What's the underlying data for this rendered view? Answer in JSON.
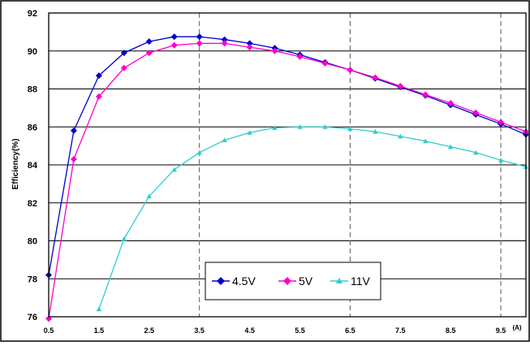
{
  "chart_data": {
    "type": "line",
    "title": "",
    "ylabel": "Efficiency(%)",
    "xunit": "(A)",
    "xlim": [
      0.5,
      10
    ],
    "ylim": [
      76,
      92
    ],
    "yticks": [
      "76",
      "78",
      "80",
      "82",
      "84",
      "86",
      "88",
      "90",
      "92"
    ],
    "xticks": [
      "0.5",
      "1.5",
      "2.5",
      "3.5",
      "4.5",
      "5.5",
      "6.5",
      "7.5",
      "8.5",
      "9.5"
    ],
    "horizontal_grid": true,
    "vertical_dashed_lines_at": [
      3.5,
      6.5,
      9.5
    ],
    "legend_position": "bottom-center",
    "series": [
      {
        "name": "4.5V",
        "color": "#0000cc",
        "marker": "diamond",
        "x": [
          0.5,
          1,
          1.5,
          2,
          2.5,
          3,
          3.5,
          4,
          4.5,
          5,
          5.5,
          6,
          6.5,
          7,
          7.5,
          8,
          8.5,
          9,
          9.5,
          10
        ],
        "values": [
          78.2,
          85.8,
          88.7,
          89.9,
          90.5,
          90.75,
          90.75,
          90.6,
          90.4,
          90.15,
          89.8,
          89.4,
          89.0,
          88.55,
          88.1,
          87.65,
          87.15,
          86.65,
          86.15,
          85.6
        ]
      },
      {
        "name": "5V",
        "color": "#ff00cc",
        "marker": "diamond",
        "x": [
          0.5,
          1,
          1.5,
          2,
          2.5,
          3,
          3.5,
          4,
          4.5,
          5,
          5.5,
          6,
          6.5,
          7,
          7.5,
          8,
          8.5,
          9,
          9.5,
          10
        ],
        "values": [
          75.9,
          84.3,
          87.6,
          89.1,
          89.9,
          90.3,
          90.4,
          90.4,
          90.2,
          90.0,
          89.7,
          89.35,
          89.0,
          88.6,
          88.15,
          87.7,
          87.25,
          86.75,
          86.25,
          85.75
        ]
      },
      {
        "name": "11V",
        "color": "#33cccc",
        "marker": "triangle",
        "x": [
          1.5,
          2,
          2.5,
          3,
          3.5,
          4,
          4.5,
          5,
          5.5,
          6,
          6.5,
          7,
          7.5,
          8,
          8.5,
          9,
          9.5,
          10
        ],
        "values": [
          76.4,
          80.1,
          82.35,
          83.75,
          84.65,
          85.3,
          85.7,
          85.95,
          86.0,
          86.0,
          85.9,
          85.75,
          85.5,
          85.25,
          84.95,
          84.65,
          84.25,
          83.9
        ]
      }
    ]
  }
}
